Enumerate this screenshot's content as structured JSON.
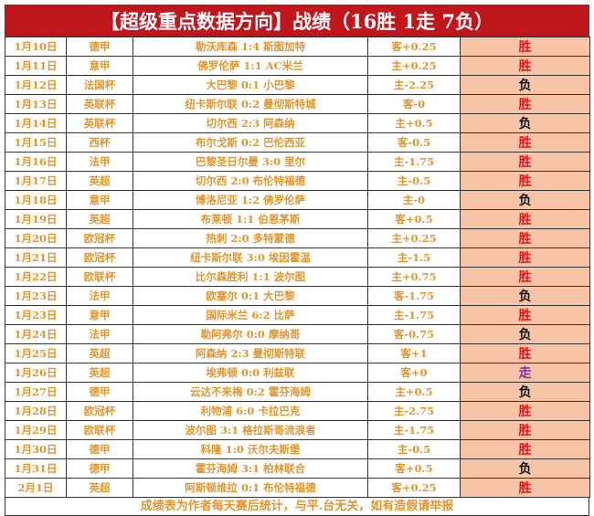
{
  "title": "【超级重点数据方向】战绩（16胜 1走 7负）",
  "colors": {
    "title_bg": "#c2161d",
    "text": "#e0962e",
    "result_bg": "#f7c4a7",
    "win": "#e8141c",
    "loss": "#111111",
    "push": "#7a2fb0"
  },
  "rows": [
    {
      "date": "1月10日",
      "league": "德甲",
      "match": "勒沃库森 1:4 斯图加特",
      "handicap": "客+0.25",
      "result": "胜"
    },
    {
      "date": "1月11日",
      "league": "意甲",
      "match": "佛罗伦萨 1:1 AC米兰",
      "handicap": "主+0.25",
      "result": "胜"
    },
    {
      "date": "1月12日",
      "league": "法国杯",
      "match": "大巴黎 0:1 小巴黎",
      "handicap": "主-2.25",
      "result": "负"
    },
    {
      "date": "1月13日",
      "league": "英联杯",
      "match": "纽卡斯尔联 0:2 曼彻斯特城",
      "handicap": "客-0",
      "result": "胜"
    },
    {
      "date": "1月14日",
      "league": "英联杯",
      "match": "切尔西 2:3 阿森纳",
      "handicap": "主+0.5",
      "result": "负"
    },
    {
      "date": "1月15日",
      "league": "西杯",
      "match": "布尔戈斯 0:2 巴伦西亚",
      "handicap": "客-0.5",
      "result": "胜"
    },
    {
      "date": "1月16日",
      "league": "法甲",
      "match": "巴黎圣日尔曼 3:0 里尔",
      "handicap": "主-1.75",
      "result": "胜"
    },
    {
      "date": "1月17日",
      "league": "英超",
      "match": "切尔西 2:0 布伦特福德",
      "handicap": "主-0.5",
      "result": "胜"
    },
    {
      "date": "1月18日",
      "league": "意甲",
      "match": "博洛尼亚 1:2 佛罗伦萨",
      "handicap": "主-0",
      "result": "负"
    },
    {
      "date": "1月19日",
      "league": "英超",
      "match": "布莱顿 1:1 伯恩茅斯",
      "handicap": "客+0.5",
      "result": "胜"
    },
    {
      "date": "1月20日",
      "league": "欧冠杯",
      "match": "热刺 2:0 多特蒙德",
      "handicap": "主+0.25",
      "result": "胜"
    },
    {
      "date": "1月21日",
      "league": "欧冠杯",
      "match": "纽卡斯尔联 3:0 埃因霍温",
      "handicap": "主-1.5",
      "result": "胜"
    },
    {
      "date": "1月22日",
      "league": "欧联杯",
      "match": "比尔森胜利 1:1 波尔图",
      "handicap": "主+0.75",
      "result": "胜"
    },
    {
      "date": "1月23日",
      "league": "法甲",
      "match": "欧塞尔 0:1 大巴黎",
      "handicap": "客-1.75",
      "result": "负"
    },
    {
      "date": "1月23日",
      "league": "意甲",
      "match": "国际米兰 6:2 比萨",
      "handicap": "主-1.75",
      "result": "胜"
    },
    {
      "date": "1月24日",
      "league": "法甲",
      "match": "勒阿弗尔 0:0 摩纳哥",
      "handicap": "客-0.75",
      "result": "负"
    },
    {
      "date": "1月25日",
      "league": "英超",
      "match": "阿森纳 2:3 曼彻斯特联",
      "handicap": "客+1",
      "result": "胜"
    },
    {
      "date": "1月26日",
      "league": "英超",
      "match": "埃弗顿 0:0 利兹联",
      "handicap": "客+0",
      "result": "走"
    },
    {
      "date": "1月27日",
      "league": "德甲",
      "match": "云达不来梅 0:2 霍芬海姆",
      "handicap": "主+0.5",
      "result": "负"
    },
    {
      "date": "1月28日",
      "league": "欧冠杯",
      "match": "利物浦 6:0 卡拉巴克",
      "handicap": "主-2.75",
      "result": "胜"
    },
    {
      "date": "1月29日",
      "league": "欧联杯",
      "match": "波尔图 3:1 格拉斯哥流浪者",
      "handicap": "主-1.75",
      "result": "胜"
    },
    {
      "date": "1月30日",
      "league": "德甲",
      "match": "科隆 1:0 沃尔夫斯堡",
      "handicap": "主-0.5",
      "result": "胜"
    },
    {
      "date": "1月31日",
      "league": "德甲",
      "match": "霍芬海姆 3:1 柏林联合",
      "handicap": "客+0.5",
      "result": "负"
    },
    {
      "date": "2月1日",
      "league": "英超",
      "match": "阿斯顿维拉 0:1 布伦特福德",
      "handicap": "客+0.25",
      "result": "胜"
    }
  ],
  "footer": "成绩表为作者每天赛后统计，与平.台无关，如有造假请举报"
}
